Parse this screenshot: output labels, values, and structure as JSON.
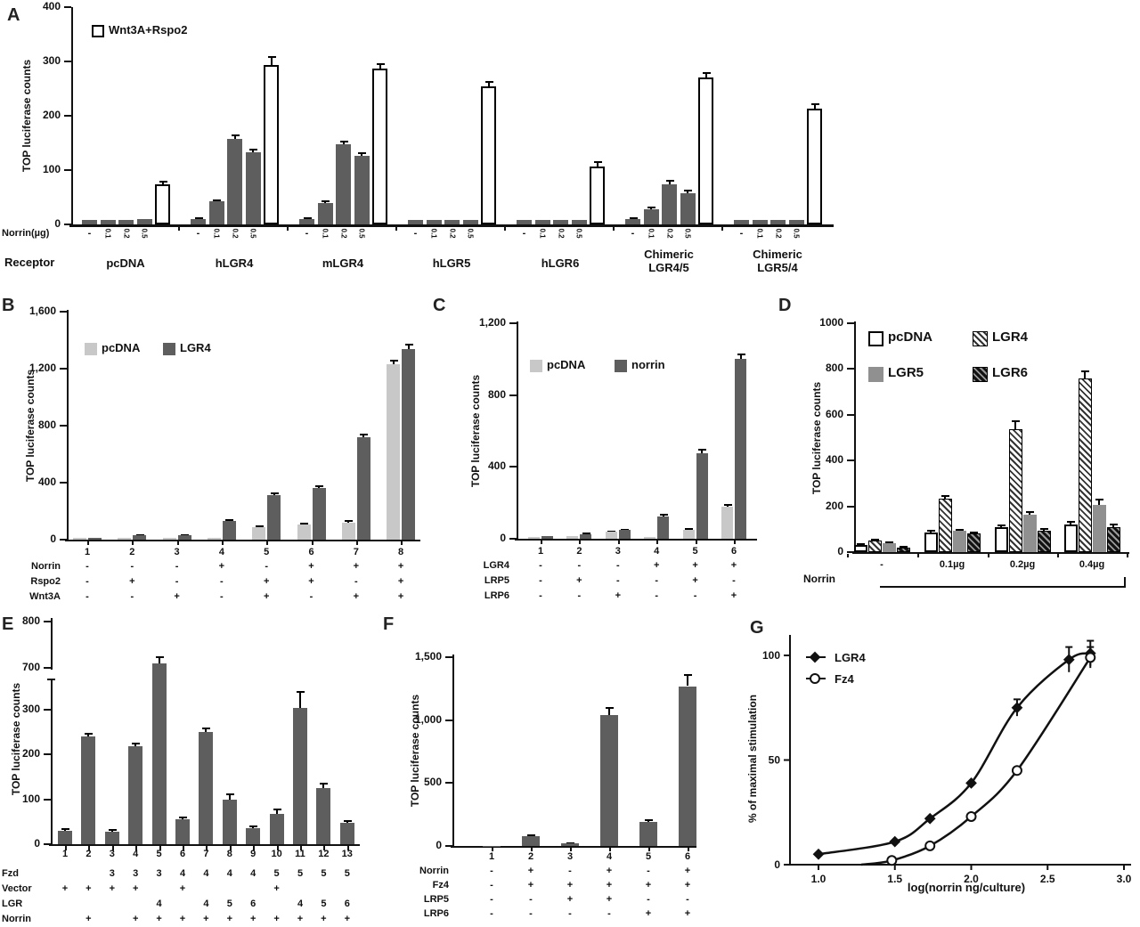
{
  "colors": {
    "ink": "#111111",
    "bar_dark": "#5e5e5e",
    "bar_light": "#c8c8c8",
    "bar_mid": "#909090",
    "bar_open": "#ffffff"
  },
  "chart_data": [
    {
      "panel": "A",
      "type": "bar",
      "ylabel": "TOP luciferase counts",
      "ylim": [
        0,
        400
      ],
      "yticks": [
        {
          "v": 0,
          "label": "0"
        },
        {
          "v": 100,
          "label": "100"
        },
        {
          "v": 200,
          "label": "200"
        },
        {
          "v": 300,
          "label": "300"
        },
        {
          "v": 400,
          "label": "400"
        }
      ],
      "legend": [
        {
          "label": "Wnt3A+Rspo2",
          "style": "white"
        }
      ],
      "dose_row_label": "Norrin(µg)",
      "receptor_row_label": "Receptor",
      "bar_labels": [
        "-",
        "0.1",
        "0.2",
        "0.5",
        ""
      ],
      "bar_styles": [
        "gray",
        "gray",
        "gray",
        "gray",
        "white"
      ],
      "groups": [
        {
          "name": "pcDNA",
          "values": [
            8,
            8,
            8,
            10,
            74
          ],
          "errors": [
            0,
            0,
            0,
            0,
            5
          ]
        },
        {
          "name": "hLGR4",
          "values": [
            10,
            42,
            158,
            132,
            293
          ],
          "errors": [
            2,
            3,
            6,
            5,
            15
          ]
        },
        {
          "name": "mLGR4",
          "values": [
            10,
            39,
            148,
            126,
            287
          ],
          "errors": [
            2,
            3,
            5,
            5,
            8
          ]
        },
        {
          "name": "hLGR5",
          "values": [
            8,
            8,
            8,
            8,
            254
          ],
          "errors": [
            0,
            0,
            0,
            0,
            9
          ]
        },
        {
          "name": "hLGR6",
          "values": [
            8,
            8,
            8,
            8,
            107
          ],
          "errors": [
            0,
            0,
            0,
            0,
            7
          ]
        },
        {
          "name": "Chimeric\nLGR4/5",
          "values": [
            10,
            28,
            74,
            58,
            270
          ],
          "errors": [
            2,
            3,
            6,
            5,
            9
          ]
        },
        {
          "name": "Chimeric\nLGR5/4",
          "values": [
            8,
            8,
            8,
            8,
            213
          ],
          "errors": [
            0,
            0,
            0,
            0,
            9
          ]
        }
      ]
    },
    {
      "panel": "B",
      "type": "bar",
      "ylabel": "TOP luciferase counts",
      "ylim": [
        0,
        1600
      ],
      "yticks": [
        {
          "v": 0,
          "label": "0"
        },
        {
          "v": 400,
          "label": "400"
        },
        {
          "v": 800,
          "label": "800"
        },
        {
          "v": 1200,
          "label": "1,200"
        },
        {
          "v": 1600,
          "label": "1,600"
        }
      ],
      "legend": [
        {
          "label": "pcDNA",
          "style": "light"
        },
        {
          "label": "LGR4",
          "style": "gray"
        }
      ],
      "lanes": [
        "1",
        "2",
        "3",
        "4",
        "5",
        "6",
        "7",
        "8"
      ],
      "series": [
        {
          "name": "pcDNA",
          "style": "light",
          "values": [
            10,
            12,
            15,
            15,
            87,
            106,
            120,
            1230
          ],
          "errors": [
            0,
            0,
            0,
            0,
            6,
            8,
            10,
            25
          ]
        },
        {
          "name": "LGR4",
          "style": "gray",
          "values": [
            12,
            30,
            30,
            130,
            310,
            362,
            718,
            1340
          ],
          "errors": [
            0,
            3,
            3,
            6,
            12,
            12,
            18,
            28
          ]
        }
      ],
      "conditions": [
        {
          "label": "Norrin",
          "values": [
            "-",
            "-",
            "-",
            "+",
            "-",
            "+",
            "+",
            "+"
          ]
        },
        {
          "label": "Rspo2",
          "values": [
            "-",
            "+",
            "-",
            "-",
            "+",
            "+",
            "-",
            "+"
          ]
        },
        {
          "label": "Wnt3A",
          "values": [
            "-",
            "-",
            "+",
            "-",
            "+",
            "-",
            "+",
            "+"
          ]
        }
      ]
    },
    {
      "panel": "C",
      "type": "bar",
      "ylabel": "TOP luciferase counts",
      "ylim": [
        0,
        1200
      ],
      "yticks": [
        {
          "v": 0,
          "label": "0"
        },
        {
          "v": 400,
          "label": "400"
        },
        {
          "v": 800,
          "label": "800"
        },
        {
          "v": 1200,
          "label": "1,200"
        }
      ],
      "legend": [
        {
          "label": "pcDNA",
          "style": "light"
        },
        {
          "label": "norrin",
          "style": "gray"
        }
      ],
      "lanes": [
        "1",
        "2",
        "3",
        "4",
        "5",
        "6"
      ],
      "series": [
        {
          "name": "pcDNA",
          "style": "light",
          "values": [
            10,
            14,
            38,
            12,
            52,
            178
          ],
          "errors": [
            0,
            0,
            3,
            0,
            5,
            10
          ]
        },
        {
          "name": "norrin",
          "style": "gray",
          "values": [
            14,
            26,
            48,
            126,
            474,
            1003
          ],
          "errors": [
            0,
            2,
            3,
            8,
            20,
            25
          ]
        }
      ],
      "conditions": [
        {
          "label": "LGR4",
          "values": [
            "-",
            "-",
            "-",
            "+",
            "+",
            "+"
          ]
        },
        {
          "label": "LRP5",
          "values": [
            "-",
            "+",
            "-",
            "-",
            "+",
            "-"
          ]
        },
        {
          "label": "LRP6",
          "values": [
            "-",
            "-",
            "+",
            "-",
            "-",
            "+"
          ]
        }
      ]
    },
    {
      "panel": "D",
      "type": "bar",
      "ylabel": "TOP luciferase counts",
      "ylim": [
        0,
        1000
      ],
      "yticks": [
        {
          "v": 0,
          "label": "0"
        },
        {
          "v": 200,
          "label": "200"
        },
        {
          "v": 400,
          "label": "400"
        },
        {
          "v": 600,
          "label": "600"
        },
        {
          "v": 800,
          "label": "800"
        },
        {
          "v": 1000,
          "label": "1000"
        }
      ],
      "legend": [
        {
          "label": "pcDNA",
          "style": "white"
        },
        {
          "label": "LGR4",
          "style": "hatch"
        },
        {
          "label": "LGR5",
          "style": "gray2"
        },
        {
          "label": "LGR6",
          "style": "hatchdark"
        }
      ],
      "categories": [
        "-",
        "0.1µg",
        "0.2µg",
        "0.4µg"
      ],
      "xlabel": "Norrin",
      "series": [
        {
          "name": "pcDNA",
          "style": "white",
          "values": [
            30,
            85,
            108,
            120
          ],
          "errors": [
            4,
            8,
            10,
            12
          ]
        },
        {
          "name": "LGR4",
          "style": "hatch",
          "values": [
            50,
            235,
            538,
            760
          ],
          "errors": [
            5,
            12,
            35,
            30
          ]
        },
        {
          "name": "LGR5",
          "style": "gray2",
          "values": [
            38,
            92,
            165,
            205
          ],
          "errors": [
            4,
            6,
            12,
            25
          ]
        },
        {
          "name": "LGR6",
          "style": "hatchdark",
          "values": [
            20,
            80,
            95,
            110
          ],
          "errors": [
            3,
            6,
            8,
            10
          ]
        }
      ]
    },
    {
      "panel": "E",
      "type": "bar",
      "ylabel": "TOP luciferase counts",
      "ylim_main": [
        0,
        300
      ],
      "ylim_upper": [
        700,
        800
      ],
      "yticks_main": [
        {
          "v": 0,
          "label": "0"
        },
        {
          "v": 100,
          "label": "100"
        },
        {
          "v": 200,
          "label": "200"
        },
        {
          "v": 300,
          "label": "300"
        }
      ],
      "yticks_upper": [
        {
          "v": 700,
          "label": "700"
        },
        {
          "v": 800,
          "label": "800"
        }
      ],
      "lanes": [
        "1",
        "2",
        "3",
        "4",
        "5",
        "6",
        "7",
        "8",
        "9",
        "10",
        "11",
        "12",
        "13"
      ],
      "values": [
        30,
        240,
        28,
        218,
        710,
        55,
        250,
        100,
        35,
        68,
        305,
        125,
        47
      ],
      "errors": [
        3,
        6,
        3,
        6,
        14,
        4,
        8,
        12,
        4,
        10,
        35,
        10,
        5
      ],
      "conditions": [
        {
          "label": "Fzd",
          "values": [
            "",
            "",
            "3",
            "3",
            "3",
            "4",
            "4",
            "4",
            "4",
            "5",
            "5",
            "5",
            "5"
          ]
        },
        {
          "label": "Vector",
          "values": [
            "+",
            "+",
            "+",
            "+",
            "",
            "+",
            "",
            "",
            "",
            "+",
            "",
            "",
            ""
          ]
        },
        {
          "label": "LGR",
          "values": [
            "",
            "",
            "",
            "",
            "4",
            "",
            "4",
            "5",
            "6",
            "",
            "4",
            "5",
            "6"
          ]
        },
        {
          "label": "Norrin",
          "values": [
            "",
            "+",
            "",
            "+",
            "+",
            "+",
            "+",
            "+",
            "+",
            "+",
            "+",
            "+",
            "+"
          ]
        }
      ]
    },
    {
      "panel": "F",
      "type": "bar",
      "ylabel": "TOP luciferase counts",
      "ylim": [
        0,
        1500
      ],
      "yticks": [
        {
          "v": 0,
          "label": "0"
        },
        {
          "v": 500,
          "label": "500"
        },
        {
          "v": 1000,
          "label": "1,000"
        },
        {
          "v": 1500,
          "label": "1,500"
        }
      ],
      "lanes": [
        "1",
        "2",
        "3",
        "4",
        "5",
        "6"
      ],
      "values": [
        2,
        80,
        20,
        1040,
        190,
        1270
      ],
      "errors": [
        0,
        6,
        3,
        60,
        12,
        85
      ],
      "conditions": [
        {
          "label": "Norrin",
          "values": [
            "-",
            "+",
            "-",
            "+",
            "-",
            "+"
          ]
        },
        {
          "label": "Fz4",
          "values": [
            "-",
            "+",
            "+",
            "+",
            "+",
            "+"
          ]
        },
        {
          "label": "LRP5",
          "values": [
            "-",
            "-",
            "+",
            "+",
            "-",
            "-"
          ]
        },
        {
          "label": "LRP6",
          "values": [
            "-",
            "-",
            "-",
            "-",
            "+",
            "+"
          ]
        }
      ]
    },
    {
      "panel": "G",
      "type": "scatter",
      "ylabel": "% of maximal stimulation",
      "xlabel": "log(norrin ng/culture)",
      "xticks": [
        {
          "v": 1.0,
          "label": "1.0"
        },
        {
          "v": 1.5,
          "label": "1.5"
        },
        {
          "v": 2.0,
          "label": "2.0"
        },
        {
          "v": 2.5,
          "label": "2.5"
        },
        {
          "v": 3.0,
          "label": "3.0"
        }
      ],
      "yticks": [
        {
          "v": 0,
          "label": "0"
        },
        {
          "v": 50,
          "label": "50"
        },
        {
          "v": 100,
          "label": "100"
        }
      ],
      "xlim": [
        1.0,
        3.0
      ],
      "ylim": [
        0,
        105
      ],
      "series": [
        {
          "name": "LGR4",
          "marker": "diamond",
          "points": [
            [
              1.0,
              5
            ],
            [
              1.5,
              11
            ],
            [
              1.73,
              22
            ],
            [
              2.0,
              39
            ],
            [
              2.3,
              75
            ],
            [
              2.64,
              98
            ],
            [
              2.78,
              101
            ]
          ],
          "errors": [
            0,
            0,
            0,
            0,
            4,
            6,
            6
          ]
        },
        {
          "name": "Fz4",
          "marker": "circle",
          "points": [
            [
              1.48,
              2
            ],
            [
              1.73,
              9
            ],
            [
              2.0,
              23
            ],
            [
              2.3,
              45
            ],
            [
              2.78,
              99
            ]
          ],
          "errors": [
            0,
            0,
            0,
            0,
            5
          ]
        }
      ]
    }
  ]
}
